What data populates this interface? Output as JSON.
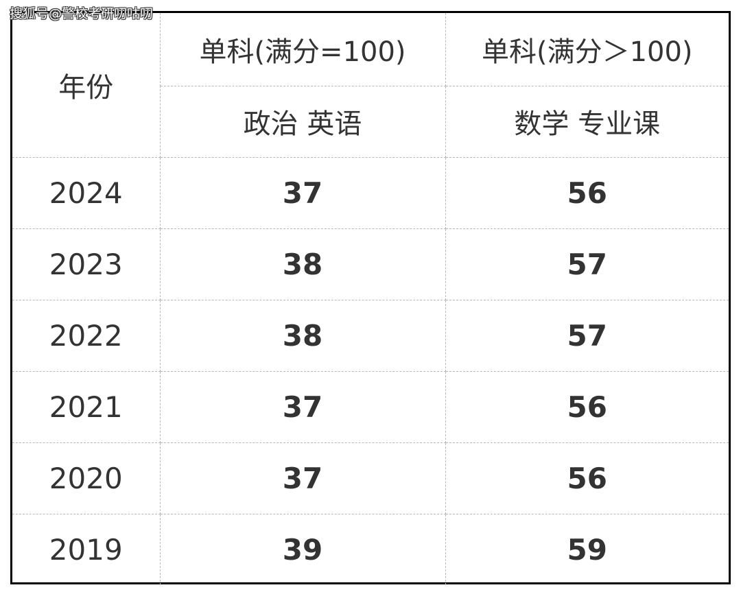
{
  "watermark": "搜狐号@警校考研叨咕叨",
  "header": {
    "year_label": "年份",
    "group_a_title": "单科(满分=100)",
    "group_a_subjects": "政治 英语",
    "group_b_title": "单科(满分＞100)",
    "group_b_subjects": "数学 专业课"
  },
  "rows": [
    {
      "year": "2024",
      "a": "37",
      "b": "56"
    },
    {
      "year": "2023",
      "a": "38",
      "b": "57"
    },
    {
      "year": "2022",
      "a": "38",
      "b": "57"
    },
    {
      "year": "2021",
      "a": "37",
      "b": "56"
    },
    {
      "year": "2020",
      "a": "37",
      "b": "56"
    },
    {
      "year": "2019",
      "a": "39",
      "b": "59"
    }
  ],
  "colors": {
    "value_text": "#4472c4",
    "body_text": "#333333",
    "frame": "#000000",
    "grid": "#b8b8b8"
  }
}
